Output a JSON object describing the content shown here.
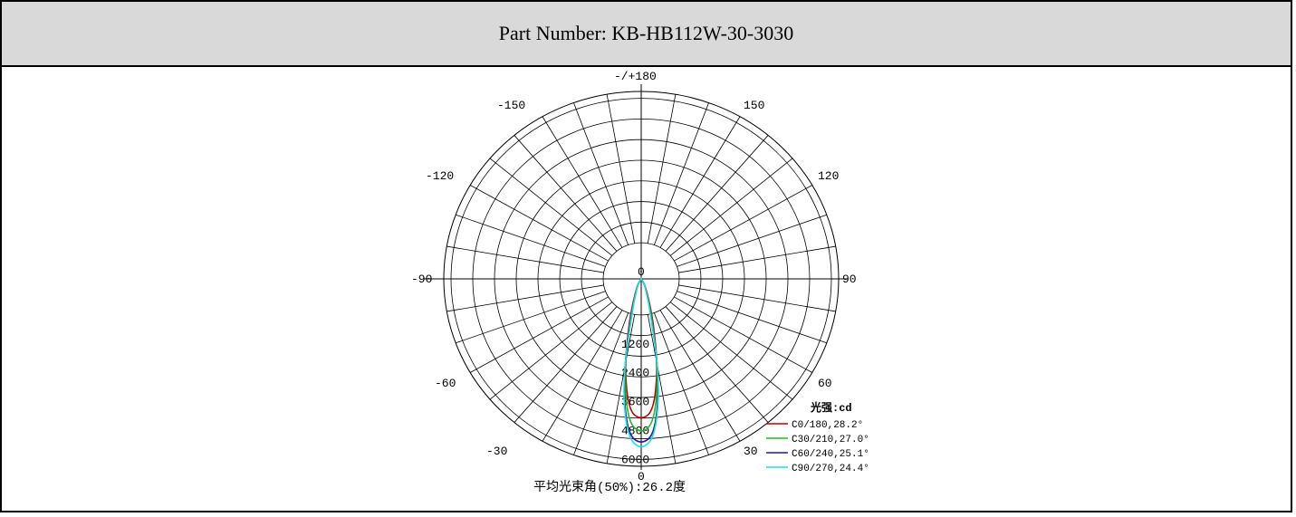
{
  "header": {
    "title": "Part Number: KB-HB112W-30-3030"
  },
  "chart_data": {
    "type": "polar",
    "title": "",
    "angle_labels": [
      "-/+180",
      "150",
      "120",
      "90",
      "60",
      "30",
      "0",
      "-30",
      "-60",
      "-90",
      "-120",
      "-150"
    ],
    "radial_ticks": [
      0,
      1200,
      2400,
      3600,
      4800,
      6000
    ],
    "r_max": 6000,
    "legend_title": "光强:cd",
    "caption": "平均光束角(50%):26.2度",
    "series": [
      {
        "name": "C0/180,28.2°",
        "color": "#c00000",
        "points": [
          [
            -45,
            0
          ],
          [
            -30,
            250
          ],
          [
            -20,
            700
          ],
          [
            -15,
            1600
          ],
          [
            -10,
            3300
          ],
          [
            -5,
            4800
          ],
          [
            0,
            5100
          ],
          [
            5,
            4800
          ],
          [
            10,
            3300
          ],
          [
            15,
            1600
          ],
          [
            20,
            700
          ],
          [
            30,
            250
          ],
          [
            45,
            0
          ]
        ]
      },
      {
        "name": "C30/210,27.0°",
        "color": "#22bb22",
        "points": [
          [
            -45,
            0
          ],
          [
            -30,
            230
          ],
          [
            -20,
            600
          ],
          [
            -15,
            1400
          ],
          [
            -10,
            3400
          ],
          [
            -5,
            5200
          ],
          [
            0,
            5600
          ],
          [
            5,
            5200
          ],
          [
            10,
            3400
          ],
          [
            15,
            1400
          ],
          [
            20,
            600
          ],
          [
            30,
            230
          ],
          [
            45,
            0
          ]
        ]
      },
      {
        "name": "C60/240,25.1°",
        "color": "#1a1aa0",
        "points": [
          [
            -45,
            0
          ],
          [
            -30,
            220
          ],
          [
            -20,
            550
          ],
          [
            -15,
            1250
          ],
          [
            -10,
            3600
          ],
          [
            -5,
            5600
          ],
          [
            0,
            6000
          ],
          [
            5,
            5600
          ],
          [
            10,
            3600
          ],
          [
            15,
            1250
          ],
          [
            20,
            550
          ],
          [
            30,
            220
          ],
          [
            45,
            0
          ]
        ]
      },
      {
        "name": "C90/270,24.4°",
        "color": "#22dddd",
        "points": [
          [
            -45,
            0
          ],
          [
            -30,
            210
          ],
          [
            -20,
            520
          ],
          [
            -15,
            1150
          ],
          [
            -10,
            3700
          ],
          [
            -5,
            5700
          ],
          [
            0,
            6200
          ],
          [
            5,
            5700
          ],
          [
            10,
            3700
          ],
          [
            15,
            1150
          ],
          [
            20,
            520
          ],
          [
            30,
            210
          ],
          [
            45,
            0
          ]
        ]
      }
    ]
  }
}
